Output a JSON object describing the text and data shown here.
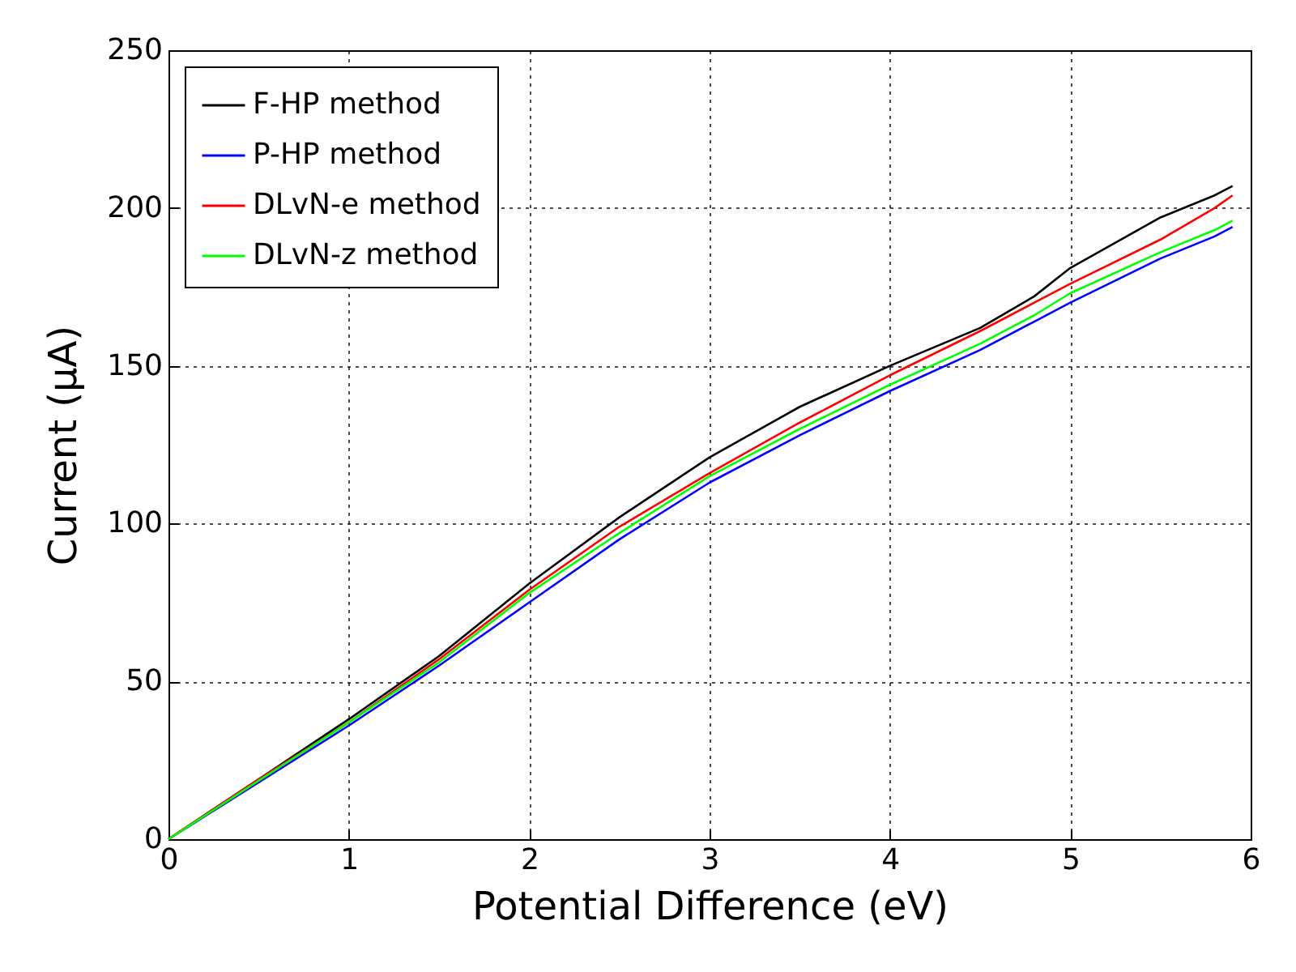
{
  "chart_data": {
    "type": "line",
    "xlabel": "Potential Difference (eV)",
    "ylabel": "Current (μA)",
    "x": [
      0,
      0.5,
      1,
      1.5,
      2,
      2.5,
      3,
      3.5,
      4,
      4.5,
      4.8,
      5,
      5.5,
      5.8,
      5.9
    ],
    "series": [
      {
        "name": "F-HP method",
        "color": "#000000",
        "values": [
          0,
          19,
          38,
          58,
          81,
          102,
          121,
          137,
          150,
          162,
          172,
          181,
          197,
          204,
          207
        ]
      },
      {
        "name": "P-HP method",
        "color": "#0000ff",
        "values": [
          0,
          18,
          36,
          55,
          75,
          95,
          113,
          128,
          142,
          155,
          164,
          170,
          184,
          191,
          194
        ]
      },
      {
        "name": "DLvN-e method",
        "color": "#ff0000",
        "values": [
          0,
          19,
          37,
          57,
          79,
          99,
          116,
          132,
          147,
          161,
          170,
          176,
          190,
          200,
          204
        ]
      },
      {
        "name": "DLvN-z method",
        "color": "#00ff00",
        "values": [
          0,
          18.5,
          37,
          56,
          78,
          97,
          115,
          130,
          144,
          157,
          166,
          173,
          186,
          193,
          196
        ]
      }
    ],
    "xlim": [
      0,
      6
    ],
    "xticks": [
      0,
      1,
      2,
      3,
      4,
      5,
      6
    ],
    "ylim": [
      0,
      250
    ],
    "yticks": [
      0,
      50,
      100,
      150,
      200,
      250
    ],
    "grid": true,
    "legend": "top left",
    "line_style": "solid",
    "marker": "none"
  }
}
